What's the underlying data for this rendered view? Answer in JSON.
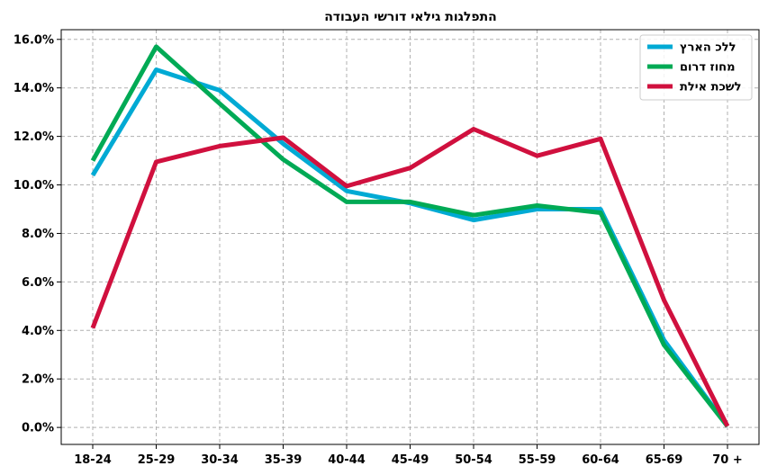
{
  "chart_data": {
    "type": "line",
    "title": "התפלגות גילאי דורשי העבודה",
    "xlabel": "",
    "ylabel": "",
    "categories": [
      "18-24",
      "25-29",
      "30-34",
      "35-39",
      "40-44",
      "45-49",
      "50-54",
      "55-59",
      "60-64",
      "65-69",
      "70 +"
    ],
    "ylim": [
      -0.7,
      16.4
    ],
    "yticks": [
      0,
      2,
      4,
      6,
      8,
      10,
      12,
      14,
      16
    ],
    "ytick_labels": [
      "0.0%",
      "2.0%",
      "4.0%",
      "6.0%",
      "8.0%",
      "10.0%",
      "12.0%",
      "14.0%",
      "16.0%"
    ],
    "grid": true,
    "legend_position": "top-right",
    "series": [
      {
        "name": "ללכ הארץ",
        "color": "#00aad4",
        "values": [
          10.4,
          14.75,
          13.9,
          11.7,
          9.75,
          9.25,
          8.55,
          9.0,
          9.0,
          3.6,
          0.05
        ]
      },
      {
        "name": "מחוז דרום",
        "color": "#00aa55",
        "values": [
          11.0,
          15.7,
          13.35,
          11.05,
          9.3,
          9.3,
          8.75,
          9.15,
          8.85,
          3.4,
          0.05
        ]
      },
      {
        "name": "לשכת אילת",
        "color": "#d0103e",
        "values": [
          4.1,
          10.95,
          11.6,
          11.95,
          9.95,
          10.7,
          12.3,
          11.2,
          11.9,
          5.25,
          0.05
        ]
      }
    ]
  }
}
